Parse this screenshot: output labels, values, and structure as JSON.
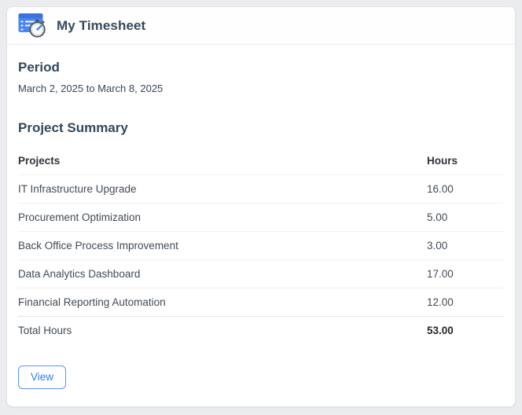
{
  "card": {
    "title": "My Timesheet"
  },
  "period": {
    "heading": "Period",
    "value": "March 2, 2025 to March 8, 2025"
  },
  "summary": {
    "heading": "Project Summary",
    "table": {
      "columns": [
        "Projects",
        "Hours"
      ],
      "rows": [
        {
          "project": "IT Infrastructure Upgrade",
          "hours": "16.00"
        },
        {
          "project": "Procurement Optimization",
          "hours": "5.00"
        },
        {
          "project": "Back Office Process Improvement",
          "hours": "3.00"
        },
        {
          "project": "Data Analytics Dashboard",
          "hours": "17.00"
        },
        {
          "project": "Financial Reporting Automation",
          "hours": "12.00"
        }
      ],
      "total": {
        "label": "Total Hours",
        "hours": "53.00"
      }
    }
  },
  "actions": {
    "view_label": "View"
  },
  "colors": {
    "accent": "#2f7bf6",
    "icon_blue": "#4b85f3",
    "heading": "#33485c",
    "text": "#414b55",
    "page_background": "#ebecee"
  }
}
